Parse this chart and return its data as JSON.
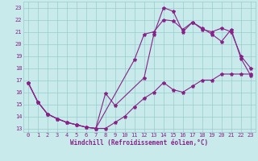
{
  "background_color": "#c8eaea",
  "grid_color": "#98cccc",
  "line_color": "#882288",
  "xlabel": "Windchill (Refroidissement éolien,°C)",
  "xlim": [
    -0.5,
    23.5
  ],
  "ylim": [
    12.7,
    23.5
  ],
  "xticks": [
    0,
    1,
    2,
    3,
    4,
    5,
    6,
    7,
    8,
    9,
    10,
    11,
    12,
    13,
    14,
    15,
    16,
    17,
    18,
    19,
    20,
    21,
    22,
    23
  ],
  "yticks": [
    13,
    14,
    15,
    16,
    17,
    18,
    19,
    20,
    21,
    22,
    23
  ],
  "line1_x": [
    0,
    1,
    2,
    3,
    4,
    5,
    6,
    7,
    11,
    12,
    13,
    14,
    15,
    16,
    17,
    18,
    19,
    20,
    21,
    22,
    23
  ],
  "line1_y": [
    16.8,
    15.2,
    14.2,
    13.8,
    13.5,
    13.3,
    13.1,
    13.0,
    18.7,
    20.8,
    21.0,
    22.0,
    21.9,
    21.2,
    21.8,
    21.3,
    20.8,
    20.2,
    21.2,
    18.8,
    17.4
  ],
  "line2_x": [
    0,
    1,
    2,
    3,
    4,
    5,
    6,
    7,
    8,
    9,
    12,
    13,
    14,
    15,
    16,
    17,
    18,
    19,
    20,
    21,
    22,
    23
  ],
  "line2_y": [
    16.8,
    15.2,
    14.2,
    13.8,
    13.5,
    13.3,
    13.1,
    13.0,
    15.9,
    14.9,
    17.2,
    20.8,
    23.0,
    22.7,
    21.0,
    21.8,
    21.2,
    21.0,
    21.3,
    21.0,
    19.0,
    18.0
  ],
  "line3_x": [
    0,
    1,
    2,
    3,
    4,
    5,
    6,
    7,
    8,
    9,
    10,
    11,
    12,
    13,
    14,
    15,
    16,
    17,
    18,
    19,
    20,
    21,
    22,
    23
  ],
  "line3_y": [
    16.8,
    15.2,
    14.2,
    13.8,
    13.5,
    13.3,
    13.1,
    13.0,
    13.0,
    13.5,
    14.0,
    14.8,
    15.5,
    16.0,
    16.8,
    16.2,
    16.0,
    16.5,
    17.0,
    17.0,
    17.5,
    17.5,
    17.5,
    17.5
  ]
}
